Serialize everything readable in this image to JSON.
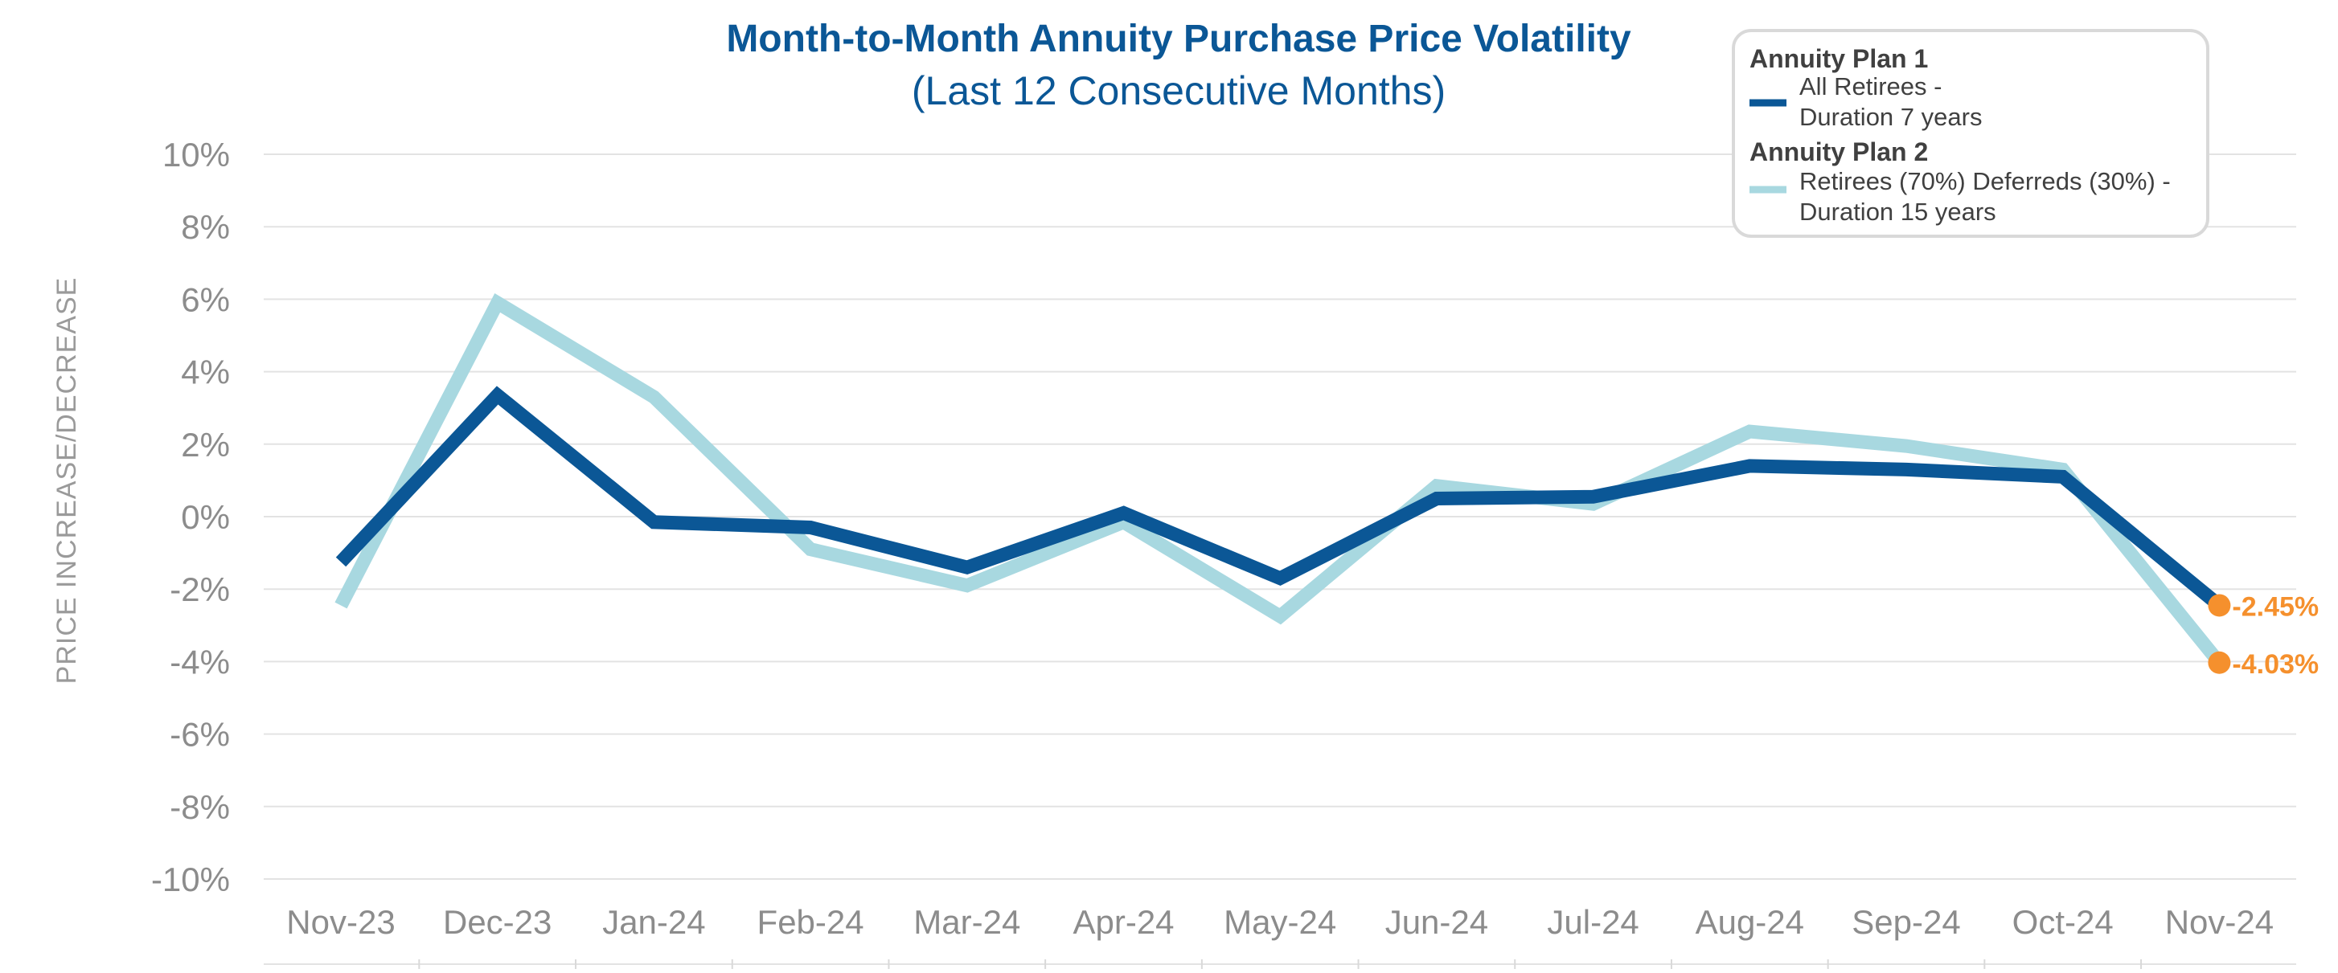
{
  "chart_data": {
    "type": "line",
    "title": "Month-to-Month Annuity Purchase Price Volatility",
    "subtitle": "(Last 12 Consecutive Months)",
    "ylabel": "PRICE INCREASE/DECREASE",
    "xlabel": "",
    "ylim": [
      -10,
      10
    ],
    "yticks": [
      10,
      8,
      6,
      4,
      2,
      0,
      -2,
      -4,
      -6,
      -8,
      -10
    ],
    "ytick_labels": [
      "10%",
      "8%",
      "6%",
      "4%",
      "2%",
      "0%",
      "-2%",
      "-4%",
      "-6%",
      "-8%",
      "-10%"
    ],
    "categories": [
      "Nov-23",
      "Dec-23",
      "Jan-24",
      "Feb-24",
      "Mar-24",
      "Apr-24",
      "May-24",
      "Jun-24",
      "Jul-24",
      "Aug-24",
      "Sep-24",
      "Oct-24",
      "Nov-24"
    ],
    "grid": true,
    "series": [
      {
        "name": "Annuity Plan 1",
        "legend_lines": [
          "All Retirees -",
          "Duration 7 years"
        ],
        "color": "#0b5796",
        "values": [
          -1.25,
          3.35,
          -0.15,
          -0.3,
          -1.4,
          0.1,
          -1.7,
          0.5,
          0.55,
          1.4,
          1.3,
          1.1,
          -2.45
        ],
        "end_label": "-2.45%"
      },
      {
        "name": "Annuity Plan 2",
        "legend_lines": [
          "Retirees (70%) Deferreds (30%) -",
          "Duration 15 years"
        ],
        "color": "#a8d8e0",
        "values": [
          -2.45,
          5.9,
          3.3,
          -0.9,
          -1.9,
          -0.15,
          -2.75,
          0.85,
          0.35,
          2.35,
          1.95,
          1.3,
          -4.03
        ],
        "end_label": "-4.03%"
      }
    ],
    "end_marker_color": "#f5902d",
    "title_color": "#0b5796",
    "legend_placement": "top-right"
  }
}
